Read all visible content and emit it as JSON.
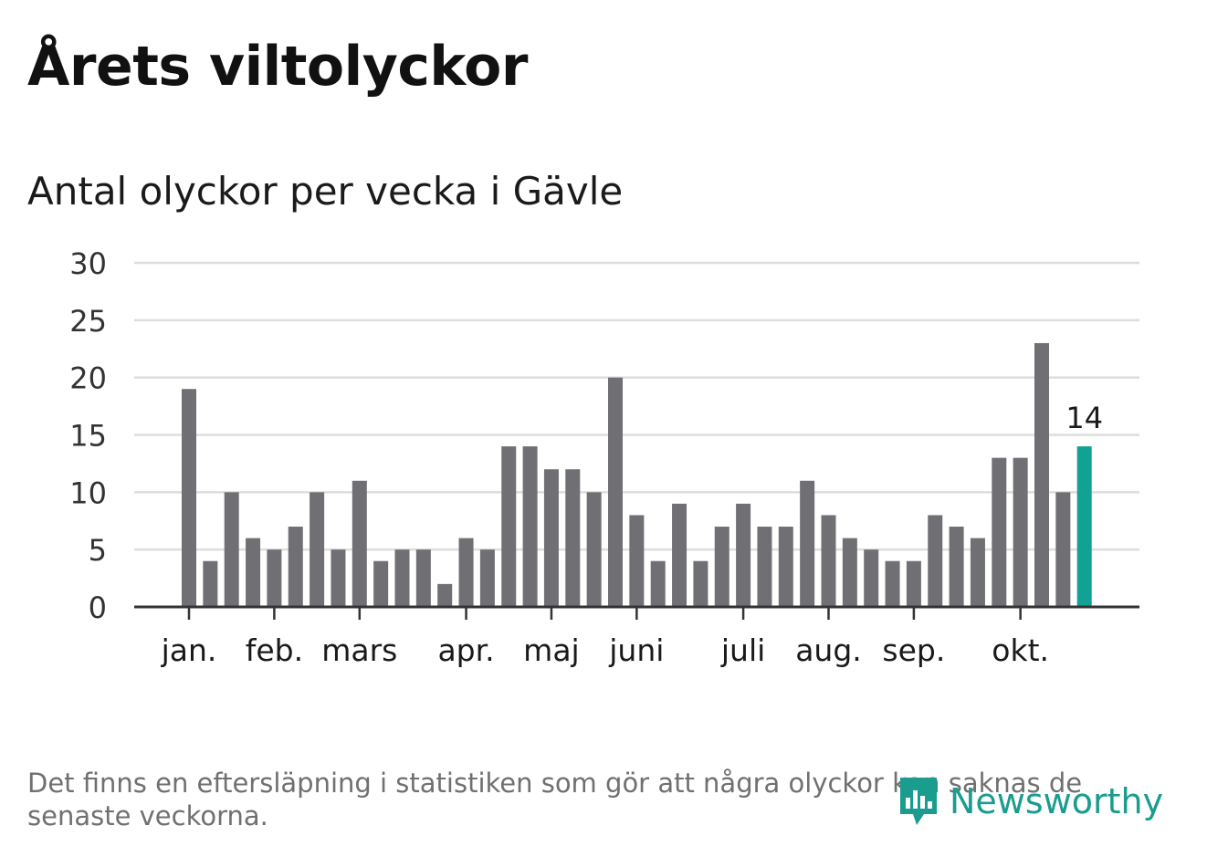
{
  "title": "Årets viltolyckor",
  "subtitle": "Antal olyckor per vecka i Gävle",
  "footnote": "Det finns en eftersläpning i statistiken som gör att några olyckor kan saknas de senaste veckorna.",
  "logo": {
    "text": "Newsworthy",
    "icon": "chart-bubble-icon"
  },
  "colors": {
    "bar": "#706f74",
    "highlight": "#12a195",
    "grid": "#dddddd",
    "axis": "#333333"
  },
  "chart_data": {
    "type": "bar",
    "title": "Antal olyckor per vecka i Gävle",
    "xlabel": "",
    "ylabel": "",
    "ylim": [
      0,
      30
    ],
    "yticks": [
      0,
      5,
      10,
      15,
      20,
      25,
      30
    ],
    "grid": true,
    "values": [
      19,
      4,
      10,
      6,
      5,
      7,
      10,
      5,
      11,
      4,
      5,
      5,
      2,
      6,
      5,
      14,
      14,
      12,
      12,
      10,
      20,
      8,
      4,
      9,
      4,
      7,
      9,
      7,
      7,
      11,
      8,
      6,
      5,
      4,
      4,
      8,
      7,
      6,
      13,
      13,
      23,
      10,
      14
    ],
    "highlight_index": 42,
    "highlight_label": "14",
    "month_labels": [
      {
        "label": "jan.",
        "week_index": 0
      },
      {
        "label": "feb.",
        "week_index": 4
      },
      {
        "label": "mars",
        "week_index": 8
      },
      {
        "label": "apr.",
        "week_index": 13
      },
      {
        "label": "maj",
        "week_index": 17
      },
      {
        "label": "juni",
        "week_index": 21
      },
      {
        "label": "juli",
        "week_index": 26
      },
      {
        "label": "aug.",
        "week_index": 30
      },
      {
        "label": "sep.",
        "week_index": 34
      },
      {
        "label": "okt.",
        "week_index": 39
      }
    ]
  }
}
